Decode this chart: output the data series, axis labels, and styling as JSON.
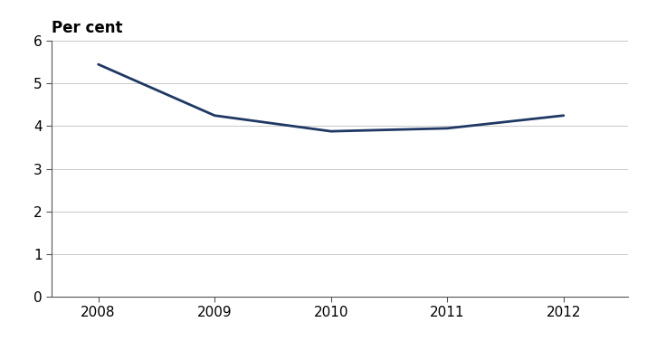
{
  "years": [
    2008,
    2009,
    2010,
    2011,
    2012
  ],
  "values": [
    5.45,
    4.25,
    3.88,
    3.95,
    4.25
  ],
  "line_color": "#1F3864",
  "line_width": 2.0,
  "ylabel": "Per cent",
  "ylim": [
    0,
    6
  ],
  "yticks": [
    0,
    1,
    2,
    3,
    4,
    5,
    6
  ],
  "xlim": [
    2007.6,
    2012.55
  ],
  "xticks": [
    2008,
    2009,
    2010,
    2011,
    2012
  ],
  "background_color": "#ffffff",
  "grid_color": "#c8c8c8",
  "ylabel_fontsize": 12,
  "tick_fontsize": 11,
  "spine_color": "#555555"
}
